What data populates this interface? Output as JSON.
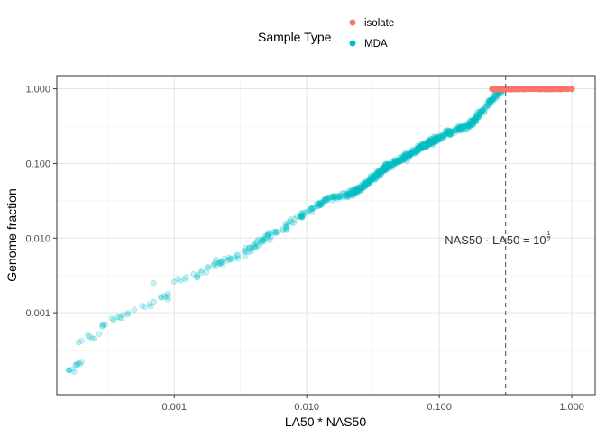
{
  "chart_data": {
    "type": "scatter",
    "title": "",
    "xlabel": "LA50 * NAS50",
    "ylabel": "Genome fraction",
    "x_scale": "log10",
    "y_scale": "log10",
    "xlim": [
      0.00013,
      1.5
    ],
    "ylim": [
      8e-05,
      1.5
    ],
    "x_ticks": [
      0.001,
      0.01,
      0.1,
      1.0
    ],
    "x_tick_labels": [
      "0.001",
      "0.010",
      "0.100",
      "1.000"
    ],
    "y_ticks": [
      0.001,
      0.01,
      0.1,
      1.0
    ],
    "y_tick_labels": [
      "0.001",
      "0.010",
      "0.100",
      "1.000"
    ],
    "grid": true,
    "legend": {
      "title": "Sample Type",
      "position": "top",
      "entries": [
        "isolate",
        "MDA"
      ]
    },
    "reference_line": {
      "orientation": "vertical",
      "x": 0.3162,
      "style": "dashed",
      "color": "#666666"
    },
    "annotation": {
      "text": "NAS50 · LA50 = 10",
      "exponent_numerator": "1",
      "exponent_denominator": "2",
      "x": 0.11,
      "y": 0.0083
    },
    "series": [
      {
        "name": "isolate",
        "color": "#F8766D",
        "x_range": [
          0.25,
          1.0
        ],
        "y_range": [
          0.985,
          1.0
        ],
        "points": [
          [
            0.26,
            0.995
          ],
          [
            0.3,
            1.0
          ],
          [
            0.35,
            0.998
          ],
          [
            0.4,
            1.0
          ],
          [
            0.5,
            0.999
          ],
          [
            0.6,
            1.0
          ],
          [
            0.7,
            0.996
          ],
          [
            0.85,
            1.0
          ],
          [
            1.0,
            0.998
          ]
        ]
      },
      {
        "name": "MDA",
        "color": "#00BFC4",
        "points": [
          [
            0.00016,
            0.00017
          ],
          [
            0.00018,
            0.0002
          ],
          [
            0.00019,
            0.00021
          ],
          [
            0.0002,
            0.00022
          ],
          [
            0.00019,
            0.0004
          ],
          [
            0.0002,
            0.00042
          ],
          [
            0.00024,
            0.00045
          ],
          [
            0.00025,
            0.00045
          ],
          [
            0.0003,
            0.0007
          ],
          [
            0.00035,
            0.0008
          ],
          [
            0.0004,
            0.00085
          ],
          [
            0.00045,
            0.001
          ],
          [
            0.0005,
            0.0011
          ],
          [
            0.0006,
            0.0012
          ],
          [
            0.0007,
            0.0014
          ],
          [
            0.0008,
            0.0016
          ],
          [
            0.0009,
            0.0015
          ],
          [
            0.0007,
            0.0025
          ],
          [
            0.0009,
            0.0018
          ],
          [
            0.001,
            0.0026
          ],
          [
            0.0012,
            0.0028
          ],
          [
            0.0014,
            0.0033
          ],
          [
            0.0015,
            0.0032
          ],
          [
            0.0018,
            0.004
          ],
          [
            0.002,
            0.0045
          ],
          [
            0.0025,
            0.005
          ],
          [
            0.003,
            0.006
          ],
          [
            0.0035,
            0.0065
          ],
          [
            0.004,
            0.008
          ],
          [
            0.005,
            0.01
          ],
          [
            0.006,
            0.012
          ],
          [
            0.007,
            0.014
          ],
          [
            0.009,
            0.02
          ],
          [
            0.01,
            0.022
          ],
          [
            0.012,
            0.027
          ],
          [
            0.014,
            0.033
          ],
          [
            0.016,
            0.035
          ],
          [
            0.02,
            0.038
          ],
          [
            0.025,
            0.045
          ],
          [
            0.03,
            0.06
          ],
          [
            0.035,
            0.075
          ],
          [
            0.04,
            0.09
          ],
          [
            0.05,
            0.11
          ],
          [
            0.06,
            0.13
          ],
          [
            0.07,
            0.16
          ],
          [
            0.08,
            0.18
          ],
          [
            0.1,
            0.22
          ],
          [
            0.12,
            0.26
          ],
          [
            0.15,
            0.3
          ],
          [
            0.18,
            0.36
          ],
          [
            0.2,
            0.45
          ],
          [
            0.22,
            0.55
          ],
          [
            0.25,
            0.7
          ],
          [
            0.28,
            0.9
          ],
          [
            0.3,
            1.0
          ]
        ]
      }
    ]
  }
}
